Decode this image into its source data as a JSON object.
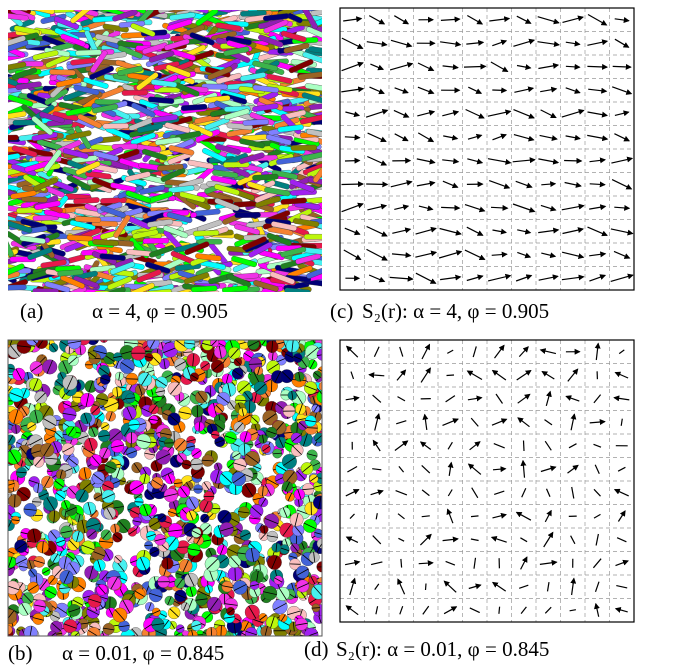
{
  "panels": [
    {
      "label": "(a)",
      "caption": "α = 4, φ = 0.905"
    },
    {
      "label": "(b)",
      "caption": "α = 0.01, φ = 0.845"
    },
    {
      "label": "(c)",
      "caption": "S₂(r): α = 4, φ = 0.905"
    },
    {
      "label": "(d)",
      "caption": "S₂(r): α = 0.01, φ = 0.845"
    }
  ]
}
